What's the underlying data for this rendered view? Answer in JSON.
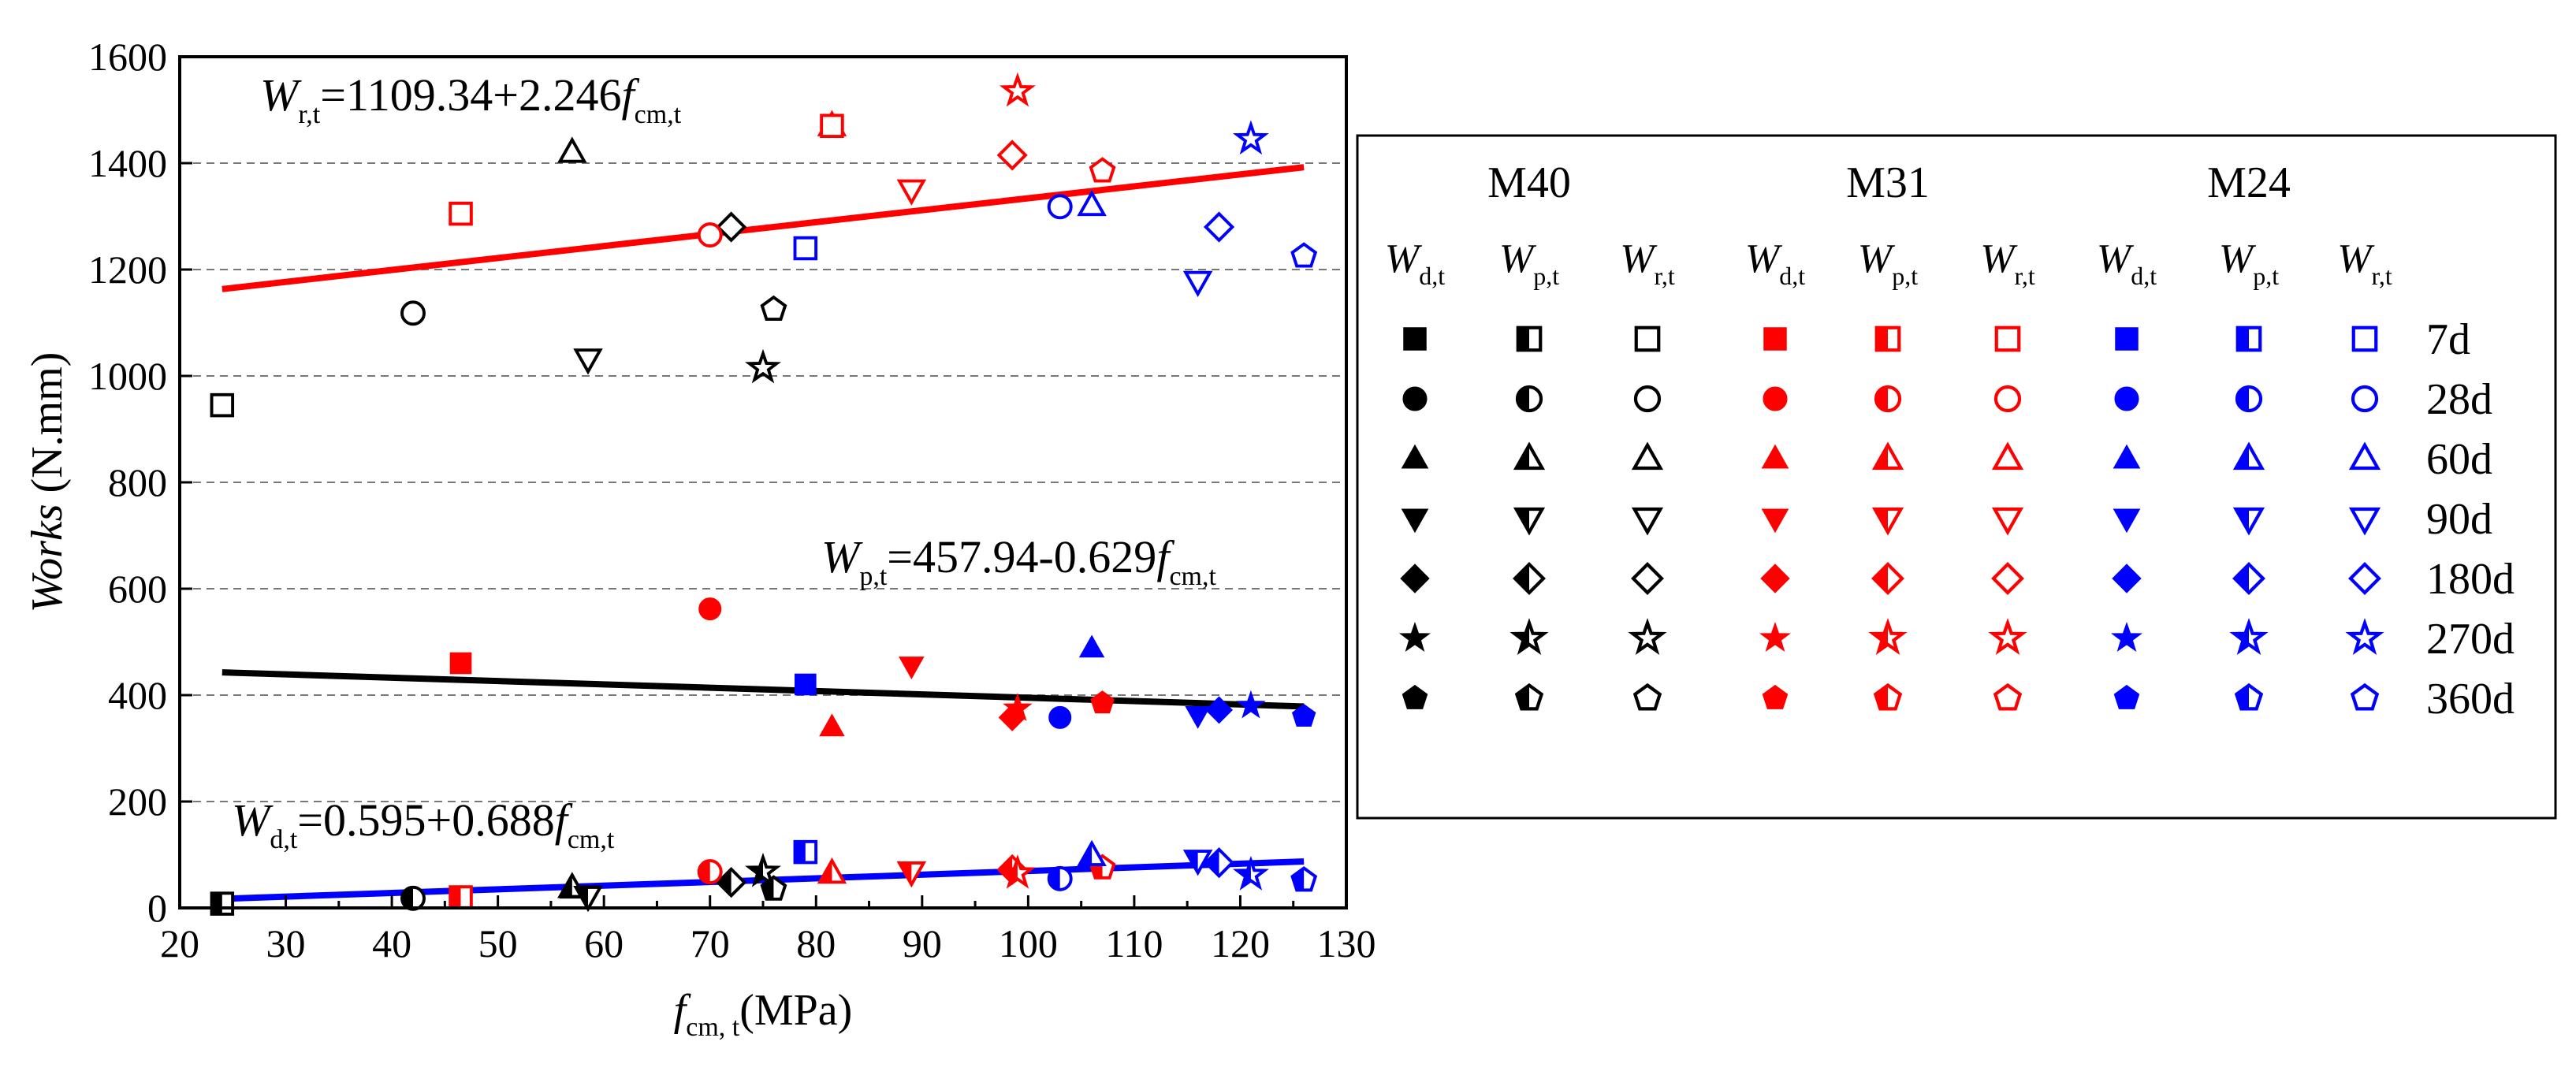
{
  "chart_data": {
    "type": "scatter",
    "x_axis": {
      "label_main": "f",
      "label_sub": "cm, t",
      "label_unit": "(MPa)",
      "range": [
        20,
        130
      ],
      "ticks": [
        "20",
        "30",
        "40",
        "50",
        "60",
        "70",
        "80",
        "90",
        "100",
        "110",
        "120",
        "130"
      ]
    },
    "y_axis": {
      "label_main": "Works",
      "label_unit": "(N.mm)",
      "range": [
        0,
        1600
      ],
      "ticks": [
        "0",
        "200",
        "400",
        "600",
        "800",
        "1000",
        "1200",
        "1400",
        "1600"
      ],
      "grid": "dashed horizontal"
    },
    "colors": {
      "M40": "#000000",
      "M31": "#ff0000",
      "M24": "#0000ff"
    },
    "groups": [
      "M40",
      "M31",
      "M24"
    ],
    "ages": [
      "7d",
      "28d",
      "60d",
      "90d",
      "180d",
      "270d",
      "360d"
    ],
    "age_markers": [
      "square",
      "circle",
      "triangle-up",
      "triangle-down",
      "diamond",
      "star",
      "pentagon"
    ],
    "work_types": [
      {
        "key": "Wd",
        "main": "W",
        "sub": "d,t",
        "fill": "filled"
      },
      {
        "key": "Wp",
        "main": "W",
        "sub": "p,t",
        "fill": "half"
      },
      {
        "key": "Wr",
        "main": "W",
        "sub": "r,t",
        "fill": "hollow"
      }
    ],
    "series": [
      {
        "name": "M40",
        "work": "Wd",
        "x": [
          24,
          42,
          57,
          58.5,
          72,
          75,
          76
        ],
        "y": [
          8,
          20,
          35,
          25,
          45,
          70,
          38
        ]
      },
      {
        "name": "M40",
        "work": "Wp",
        "x": [
          24,
          42,
          57,
          58.5,
          72,
          75,
          76
        ],
        "y": [
          8,
          18,
          38,
          22,
          48,
          68,
          35
        ]
      },
      {
        "name": "M40",
        "work": "Wr",
        "x": [
          24,
          42,
          57,
          58.5,
          72,
          75,
          76
        ],
        "y": [
          945,
          1118,
          1420,
          1032,
          1280,
          1015,
          1125
        ]
      },
      {
        "name": "M31",
        "work": "Wd",
        "x": [
          46.5,
          70,
          81.5,
          89,
          98.5,
          99,
          107
        ],
        "y": [
          460,
          562,
          340,
          455,
          358,
          375,
          385
        ]
      },
      {
        "name": "M31",
        "work": "Wp",
        "x": [
          46.5,
          70,
          81.5,
          89,
          98.5,
          99,
          107
        ],
        "y": [
          20,
          68,
          65,
          68,
          72,
          65,
          75
        ]
      },
      {
        "name": "M31",
        "work": "Wr",
        "x": [
          46.5,
          70,
          81.5,
          89,
          98.5,
          99,
          107
        ],
        "y": [
          1305,
          1265,
          1470,
          1350,
          1415,
          1535,
          1385
        ]
      },
      {
        "name": "M31",
        "work": "Wr",
        "x": [
          81.5
        ],
        "y": [
          1470
        ]
      },
      {
        "name": "M24",
        "work": "Wd",
        "x": [
          79,
          103,
          106,
          116,
          118,
          121,
          126
        ],
        "y": [
          420,
          358,
          488,
          362,
          372,
          380,
          360
        ]
      },
      {
        "name": "M24",
        "work": "Wp",
        "x": [
          79,
          103,
          106,
          116,
          118,
          121,
          126
        ],
        "y": [
          105,
          55,
          98,
          90,
          85,
          62,
          52
        ]
      },
      {
        "name": "M24",
        "work": "Wr",
        "x": [
          79,
          103,
          106,
          116,
          118,
          121,
          126
        ],
        "y": [
          1240,
          1318,
          1320,
          1178,
          1280,
          1445,
          1225
        ]
      }
    ],
    "fit_lines": [
      {
        "work": "Wr",
        "color": "#ff0000",
        "intercept": 1109.34,
        "slope": 2.246,
        "x_range": [
          24,
          126
        ],
        "label_main": "W",
        "label_sub": "r,t",
        "label_eq": "=1109.34+2.246",
        "label_var": "f",
        "label_var_sub": "cm,t"
      },
      {
        "work": "Wp",
        "color": "#000000",
        "intercept": 457.94,
        "slope": -0.629,
        "x_range": [
          24,
          126
        ],
        "label_main": "W",
        "label_sub": "p,t",
        "label_eq": "=457.94-0.629",
        "label_var": "f",
        "label_var_sub": "cm,t"
      },
      {
        "work": "Wd",
        "color": "#0000ff",
        "intercept": 0.595,
        "slope": 0.688,
        "x_range": [
          24,
          126
        ],
        "label_main": "W",
        "label_sub": "d,t",
        "label_eq": "=0.595+0.688",
        "label_var": "f",
        "label_var_sub": "cm,t"
      }
    ],
    "legend": {
      "placement": "right",
      "boxed": true
    }
  }
}
